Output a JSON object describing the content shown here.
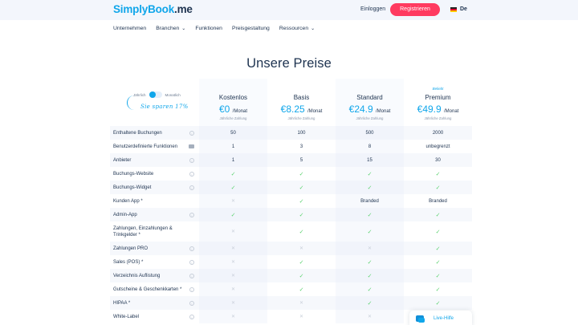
{
  "header": {
    "logo_main": "SimplyBook",
    "logo_suffix": ".me",
    "login_label": "Einloggen",
    "register_label": "Registrieren",
    "language": "De",
    "accent_color": "#10a6ea",
    "register_color": "#ff3b60"
  },
  "nav": {
    "items": [
      {
        "label": "Unternehmen",
        "dropdown": false
      },
      {
        "label": "Branchen",
        "dropdown": true
      },
      {
        "label": "Funktionen",
        "dropdown": false
      },
      {
        "label": "Preisgestaltung",
        "dropdown": false
      },
      {
        "label": "Ressourcen",
        "dropdown": true
      }
    ]
  },
  "page": {
    "title": "Unsere Preise"
  },
  "billing_toggle": {
    "left_label": "Jährlich",
    "right_label": "Monatlich",
    "selected": "Jährlich",
    "savings_note": "Sie sparen 17%"
  },
  "plans": [
    {
      "name": "Kostenlos",
      "price": "€0",
      "period": "/Monat",
      "billing": "Jährliche Zahlung",
      "badge": ""
    },
    {
      "name": "Basis",
      "price": "€8.25",
      "period": "/Monat",
      "billing": "Jährliche Zahlung",
      "badge": ""
    },
    {
      "name": "Standard",
      "price": "€24.9",
      "period": "/Monat",
      "billing": "Jährliche Zahlung",
      "badge": ""
    },
    {
      "name": "Premium",
      "price": "€49.9",
      "period": "/Monat",
      "billing": "Jährliche Zahlung",
      "badge": "Beliebt"
    }
  ],
  "features": [
    {
      "label": "Enthaltene Buchungen",
      "icon": "info",
      "values": [
        "50",
        "100",
        "500",
        "2000"
      ]
    },
    {
      "label": "Benutzerdefinierte Funktionen",
      "icon": "box",
      "values": [
        "1",
        "3",
        "8",
        "unbegrenzt"
      ]
    },
    {
      "label": "Anbieter",
      "icon": "info",
      "values": [
        "1",
        "5",
        "15",
        "30"
      ]
    },
    {
      "label": "Buchungs-Website",
      "icon": "info",
      "values": [
        "check",
        "check",
        "check",
        "check"
      ]
    },
    {
      "label": "Buchungs-Widget",
      "icon": "info",
      "values": [
        "check",
        "check",
        "check",
        "check"
      ]
    },
    {
      "label": "Kunden App *",
      "icon": "",
      "values": [
        "cross",
        "check",
        "Branded",
        "Branded"
      ]
    },
    {
      "label": "Admin-App",
      "icon": "info",
      "values": [
        "check",
        "check",
        "check",
        "check"
      ]
    },
    {
      "label": "Zahlungen, Einzahlungen & Trinkgelder *",
      "icon": "",
      "values": [
        "cross",
        "check",
        "check",
        "check"
      ]
    },
    {
      "label": "Zahlungen PRO",
      "icon": "info",
      "values": [
        "cross",
        "cross",
        "cross",
        "check"
      ]
    },
    {
      "label": "Sales (POS) *",
      "icon": "info",
      "values": [
        "cross",
        "check",
        "check",
        "check"
      ]
    },
    {
      "label": "Verzeichnis Auflistung",
      "icon": "info",
      "values": [
        "cross",
        "check",
        "check",
        "check"
      ]
    },
    {
      "label": "Gutscheine & Geschenkkarten *",
      "icon": "info",
      "values": [
        "cross",
        "check",
        "check",
        "check"
      ]
    },
    {
      "label": "HIPAA *",
      "icon": "info",
      "values": [
        "cross",
        "cross",
        "check",
        "check"
      ]
    },
    {
      "label": "White-Label",
      "icon": "info",
      "values": [
        "cross",
        "cross",
        "cross",
        "check"
      ]
    }
  ],
  "live_help": {
    "label": "Live-Hilfe"
  }
}
